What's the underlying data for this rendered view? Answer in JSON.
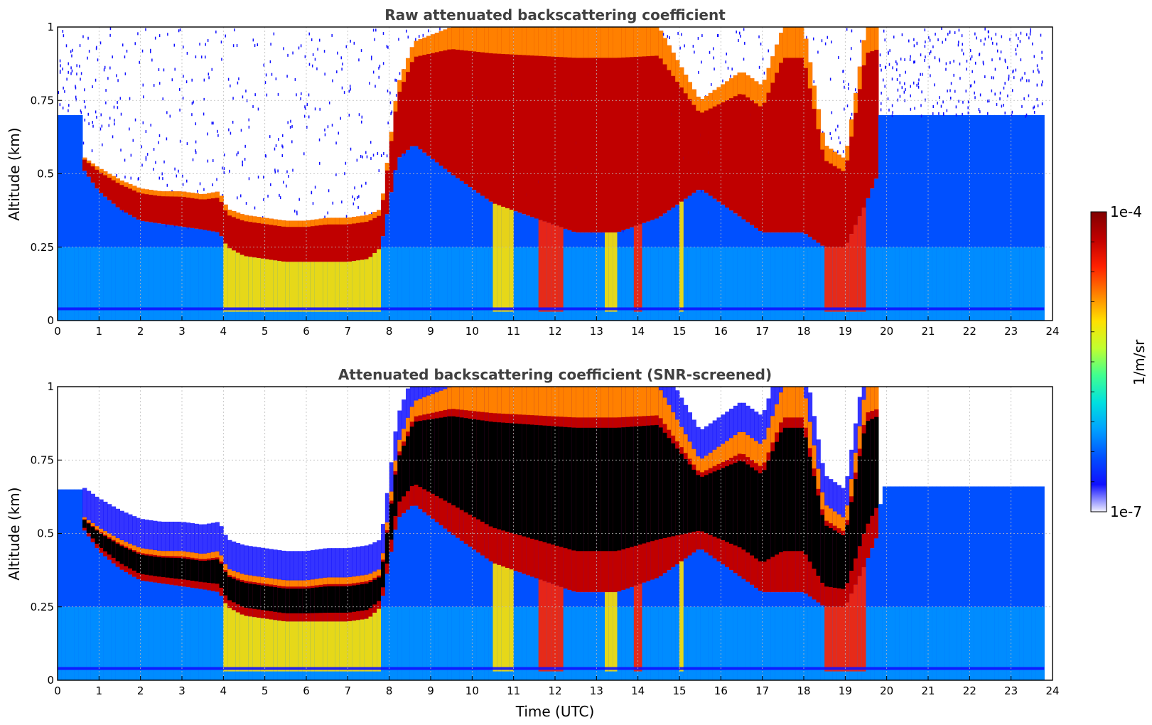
{
  "chart_data": [
    {
      "type": "heatmap",
      "title": "Raw attenuated backscattering coefficient",
      "xlabel": "",
      "ylabel": "Altitude (km)",
      "xlim": [
        0,
        24
      ],
      "ylim": [
        0,
        1
      ],
      "xticks": [
        "0",
        "1",
        "2",
        "3",
        "4",
        "5",
        "6",
        "7",
        "8",
        "9",
        "10",
        "11",
        "12",
        "13",
        "14",
        "15",
        "16",
        "17",
        "18",
        "19",
        "20",
        "21",
        "22",
        "23",
        "24"
      ],
      "yticks": [
        "0",
        "0.25",
        "0.5",
        "0.75",
        "1"
      ],
      "grid": true,
      "screened": false,
      "cloud_base_km": [
        [
          0.6,
          0.52
        ],
        [
          0.8,
          0.48
        ],
        [
          1.0,
          0.44
        ],
        [
          1.5,
          0.38
        ],
        [
          2.0,
          0.34
        ],
        [
          2.5,
          0.33
        ],
        [
          3.0,
          0.32
        ],
        [
          3.5,
          0.31
        ],
        [
          3.9,
          0.3
        ],
        [
          4.1,
          0.25
        ],
        [
          4.5,
          0.22
        ],
        [
          5.0,
          0.21
        ],
        [
          5.5,
          0.2
        ],
        [
          6.0,
          0.2
        ],
        [
          6.5,
          0.2
        ],
        [
          7.0,
          0.2
        ],
        [
          7.5,
          0.21
        ],
        [
          7.8,
          0.25
        ],
        [
          8.2,
          0.55
        ],
        [
          8.6,
          0.6
        ],
        [
          9.5,
          0.5
        ],
        [
          10.5,
          0.4
        ],
        [
          11.5,
          0.35
        ],
        [
          12.5,
          0.3
        ],
        [
          13.5,
          0.3
        ],
        [
          14.5,
          0.35
        ],
        [
          15.5,
          0.45
        ],
        [
          16.5,
          0.35
        ],
        [
          17.0,
          0.3
        ],
        [
          17.5,
          0.3
        ],
        [
          18.0,
          0.3
        ],
        [
          18.5,
          0.25
        ],
        [
          19.0,
          0.25
        ],
        [
          19.5,
          0.4
        ],
        [
          19.8,
          0.5
        ]
      ],
      "cloud_top_km": [
        [
          0.6,
          0.56
        ],
        [
          0.8,
          0.54
        ],
        [
          1.0,
          0.52
        ],
        [
          1.5,
          0.48
        ],
        [
          2.0,
          0.45
        ],
        [
          2.5,
          0.44
        ],
        [
          3.0,
          0.44
        ],
        [
          3.5,
          0.43
        ],
        [
          3.9,
          0.44
        ],
        [
          4.1,
          0.38
        ],
        [
          4.5,
          0.36
        ],
        [
          5.0,
          0.35
        ],
        [
          5.5,
          0.34
        ],
        [
          6.0,
          0.34
        ],
        [
          6.5,
          0.35
        ],
        [
          7.0,
          0.35
        ],
        [
          7.5,
          0.36
        ],
        [
          7.8,
          0.38
        ],
        [
          8.2,
          0.8
        ],
        [
          8.6,
          0.95
        ],
        [
          9.5,
          1.0
        ],
        [
          10.5,
          1.0
        ],
        [
          11.5,
          1.0
        ],
        [
          12.5,
          1.0
        ],
        [
          13.5,
          1.0
        ],
        [
          14.5,
          1.0
        ],
        [
          15.5,
          0.75
        ],
        [
          16.5,
          0.85
        ],
        [
          17.0,
          0.8
        ],
        [
          17.5,
          1.0
        ],
        [
          18.0,
          1.0
        ],
        [
          18.5,
          0.6
        ],
        [
          19.0,
          0.55
        ],
        [
          19.5,
          1.0
        ],
        [
          19.8,
          1.0
        ]
      ],
      "overlap_line_km": 0.04
    },
    {
      "type": "heatmap",
      "title": "Attenuated backscattering coefficient (SNR-screened)",
      "xlabel": "Time (UTC)",
      "ylabel": "Altitude (km)",
      "xlim": [
        0,
        24
      ],
      "ylim": [
        0,
        1
      ],
      "xticks": [
        "0",
        "1",
        "2",
        "3",
        "4",
        "5",
        "6",
        "7",
        "8",
        "9",
        "10",
        "11",
        "12",
        "13",
        "14",
        "15",
        "16",
        "17",
        "18",
        "19",
        "20",
        "21",
        "22",
        "23",
        "24"
      ],
      "yticks": [
        "0",
        "0.25",
        "0.5",
        "0.75",
        "1"
      ],
      "grid": true,
      "screened": true,
      "overlap_line_km": 0.04
    }
  ],
  "colorbar": {
    "label": "1/m/sr",
    "max_label": "1e-4",
    "min_label": "1e-7",
    "colormap": [
      "#f0f0ff",
      "#1010ff",
      "#0050ff",
      "#00a0ff",
      "#00e0e0",
      "#40ff90",
      "#c0ff30",
      "#ffe000",
      "#ff8000",
      "#ff2000",
      "#c00000",
      "#800000"
    ]
  },
  "style": {
    "title_color": "#404040",
    "grid_color": "#bbbbbb",
    "screened_fill": "#000000"
  }
}
